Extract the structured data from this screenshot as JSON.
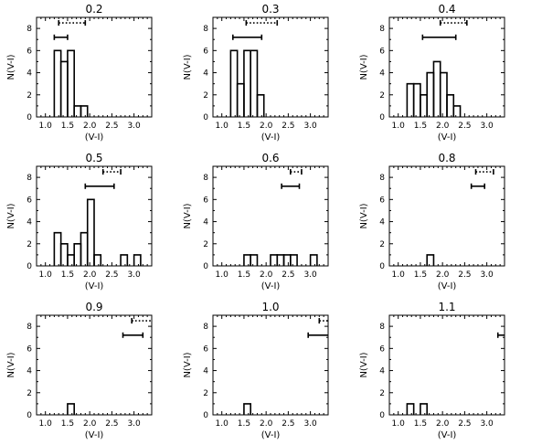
{
  "chart_data": [
    {
      "type": "histogram",
      "title": "0.2",
      "xlabel": "(V-I)",
      "ylabel": "N(V-I)",
      "xlim": [
        0.8,
        3.4
      ],
      "ylim": [
        0,
        9
      ],
      "xticks": [
        "1.0",
        "1.5",
        "2.0",
        "2.5",
        "3.0"
      ],
      "yticks": [
        "0",
        "2",
        "4",
        "6",
        "8"
      ],
      "bin_width": 0.15,
      "bins": [
        {
          "x": 1.2,
          "count": 6
        },
        {
          "x": 1.35,
          "count": 5
        },
        {
          "x": 1.5,
          "count": 6
        },
        {
          "x": 1.65,
          "count": 1
        },
        {
          "x": 1.8,
          "count": 1
        }
      ],
      "solid_range": {
        "y": 7.2,
        "x0": 1.2,
        "x1": 1.5
      },
      "dotted_range": {
        "y": 8.5,
        "x0": 1.3,
        "x1": 1.9
      }
    },
    {
      "type": "histogram",
      "title": "0.3",
      "xlabel": "(V-I)",
      "ylabel": "N(V-I)",
      "xlim": [
        0.8,
        3.4
      ],
      "ylim": [
        0,
        9
      ],
      "xticks": [
        "1.0",
        "1.5",
        "2.0",
        "2.5",
        "3.0"
      ],
      "yticks": [
        "0",
        "2",
        "4",
        "6",
        "8"
      ],
      "bin_width": 0.15,
      "bins": [
        {
          "x": 1.2,
          "count": 6
        },
        {
          "x": 1.35,
          "count": 3
        },
        {
          "x": 1.5,
          "count": 6
        },
        {
          "x": 1.65,
          "count": 6
        },
        {
          "x": 1.8,
          "count": 2
        }
      ],
      "solid_range": {
        "y": 7.2,
        "x0": 1.25,
        "x1": 1.9
      },
      "dotted_range": {
        "y": 8.5,
        "x0": 1.55,
        "x1": 2.25
      }
    },
    {
      "type": "histogram",
      "title": "0.4",
      "xlabel": "(V-I)",
      "ylabel": "N(V-I)",
      "xlim": [
        0.8,
        3.4
      ],
      "ylim": [
        0,
        9
      ],
      "xticks": [
        "1.0",
        "1.5",
        "2.0",
        "2.5",
        "3.0"
      ],
      "yticks": [
        "0",
        "2",
        "4",
        "6",
        "8"
      ],
      "bin_width": 0.15,
      "bins": [
        {
          "x": 1.2,
          "count": 3
        },
        {
          "x": 1.35,
          "count": 3
        },
        {
          "x": 1.5,
          "count": 2
        },
        {
          "x": 1.65,
          "count": 4
        },
        {
          "x": 1.8,
          "count": 5
        },
        {
          "x": 1.95,
          "count": 4
        },
        {
          "x": 2.1,
          "count": 2
        },
        {
          "x": 2.25,
          "count": 1
        }
      ],
      "solid_range": {
        "y": 7.2,
        "x0": 1.55,
        "x1": 2.3
      },
      "dotted_range": {
        "y": 8.5,
        "x0": 1.95,
        "x1": 2.55
      }
    },
    {
      "type": "histogram",
      "title": "0.5",
      "xlabel": "(V-I)",
      "ylabel": "N(V-I)",
      "xlim": [
        0.8,
        3.4
      ],
      "ylim": [
        0,
        9
      ],
      "xticks": [
        "1.0",
        "1.5",
        "2.0",
        "2.5",
        "3.0"
      ],
      "yticks": [
        "0",
        "2",
        "4",
        "6",
        "8"
      ],
      "bin_width": 0.15,
      "bins": [
        {
          "x": 1.2,
          "count": 3
        },
        {
          "x": 1.35,
          "count": 2
        },
        {
          "x": 1.5,
          "count": 1
        },
        {
          "x": 1.65,
          "count": 2
        },
        {
          "x": 1.8,
          "count": 3
        },
        {
          "x": 1.95,
          "count": 6
        },
        {
          "x": 2.1,
          "count": 1
        },
        {
          "x": 2.7,
          "count": 1
        },
        {
          "x": 3.0,
          "count": 1
        }
      ],
      "solid_range": {
        "y": 7.2,
        "x0": 1.9,
        "x1": 2.55
      },
      "dotted_range": {
        "y": 8.5,
        "x0": 2.3,
        "x1": 2.7
      }
    },
    {
      "type": "histogram",
      "title": "0.6",
      "xlabel": "(V-I)",
      "ylabel": "N(V-I)",
      "xlim": [
        0.8,
        3.4
      ],
      "ylim": [
        0,
        9
      ],
      "xticks": [
        "1.0",
        "1.5",
        "2.0",
        "2.5",
        "3.0"
      ],
      "yticks": [
        "0",
        "2",
        "4",
        "6",
        "8"
      ],
      "bin_width": 0.15,
      "bins": [
        {
          "x": 1.5,
          "count": 1
        },
        {
          "x": 1.65,
          "count": 1
        },
        {
          "x": 2.1,
          "count": 1
        },
        {
          "x": 2.25,
          "count": 1
        },
        {
          "x": 2.4,
          "count": 1
        },
        {
          "x": 2.55,
          "count": 1
        },
        {
          "x": 3.0,
          "count": 1
        }
      ],
      "solid_range": {
        "y": 7.2,
        "x0": 2.35,
        "x1": 2.75
      },
      "dotted_range": {
        "y": 8.5,
        "x0": 2.55,
        "x1": 2.8
      }
    },
    {
      "type": "histogram",
      "title": "0.8",
      "xlabel": "(V-I)",
      "ylabel": "N(V-I)",
      "xlim": [
        0.8,
        3.4
      ],
      "ylim": [
        0,
        9
      ],
      "xticks": [
        "1.0",
        "1.5",
        "2.0",
        "2.5",
        "3.0"
      ],
      "yticks": [
        "0",
        "2",
        "4",
        "6",
        "8"
      ],
      "bin_width": 0.15,
      "bins": [
        {
          "x": 1.65,
          "count": 1
        }
      ],
      "solid_range": {
        "y": 7.2,
        "x0": 2.65,
        "x1": 2.95
      },
      "dotted_range": {
        "y": 8.5,
        "x0": 2.75,
        "x1": 3.15
      }
    },
    {
      "type": "histogram",
      "title": "0.9",
      "xlabel": "(V-I)",
      "ylabel": "N(V-I)",
      "xlim": [
        0.8,
        3.4
      ],
      "ylim": [
        0,
        9
      ],
      "xticks": [
        "1.0",
        "1.5",
        "2.0",
        "2.5",
        "3.0"
      ],
      "yticks": [
        "0",
        "2",
        "4",
        "6",
        "8"
      ],
      "bin_width": 0.15,
      "bins": [
        {
          "x": 1.5,
          "count": 1
        }
      ],
      "solid_range": {
        "y": 7.2,
        "x0": 2.75,
        "x1": 3.2
      },
      "dotted_range": {
        "y": 8.5,
        "x0": 2.95,
        "x1": 3.4
      }
    },
    {
      "type": "histogram",
      "title": "1.0",
      "xlabel": "(V-I)",
      "ylabel": "N(V-I)",
      "xlim": [
        0.8,
        3.4
      ],
      "ylim": [
        0,
        9
      ],
      "xticks": [
        "1.0",
        "1.5",
        "2.0",
        "2.5",
        "3.0"
      ],
      "yticks": [
        "0",
        "2",
        "4",
        "6",
        "8"
      ],
      "bin_width": 0.15,
      "bins": [
        {
          "x": 1.5,
          "count": 1
        }
      ],
      "solid_range": {
        "y": 7.2,
        "x0": 2.95,
        "x1": 3.4
      },
      "dotted_range": {
        "y": 8.5,
        "x0": 3.2,
        "x1": 3.4
      }
    },
    {
      "type": "histogram",
      "title": "1.1",
      "xlabel": "(V-I)",
      "ylabel": "N(V-I)",
      "xlim": [
        0.8,
        3.4
      ],
      "ylim": [
        0,
        9
      ],
      "xticks": [
        "1.0",
        "1.5",
        "2.0",
        "2.5",
        "3.0"
      ],
      "yticks": [
        "0",
        "2",
        "4",
        "6",
        "8"
      ],
      "bin_width": 0.15,
      "bins": [
        {
          "x": 1.2,
          "count": 1
        },
        {
          "x": 1.5,
          "count": 1
        }
      ],
      "solid_range": {
        "y": 7.2,
        "x0": 3.25,
        "x1": 3.4
      },
      "dotted_range": null
    }
  ]
}
